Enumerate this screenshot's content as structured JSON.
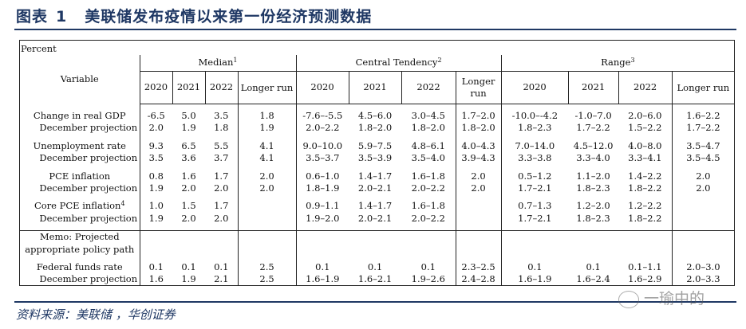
{
  "figure": {
    "label": "图表",
    "number": "1",
    "title": "美联储发布疫情以来第一份经济预测数据"
  },
  "table": {
    "unit": "Percent",
    "variable_header": "Variable",
    "groups": [
      {
        "name": "Median",
        "note": "1"
      },
      {
        "name": "Central Tendency",
        "note": "2"
      },
      {
        "name": "Range",
        "note": "3"
      }
    ],
    "year_headers": [
      "2020",
      "2021",
      "2022",
      "Longer run"
    ],
    "rows": [
      {
        "label": "Change in real GDP",
        "sub_label": "December projection",
        "median": [
          [
            "-6.5",
            "2.0"
          ],
          [
            "5.0",
            "1.9"
          ],
          [
            "3.5",
            "1.8"
          ],
          [
            "1.8",
            "1.9"
          ]
        ],
        "central": [
          [
            "-7.6–-5.5",
            "2.0–2.2"
          ],
          [
            "4.5–6.0",
            "1.8–2.0"
          ],
          [
            "3.0–4.5",
            "1.8–2.0"
          ],
          [
            "1.7–2.0",
            "1.8–2.0"
          ]
        ],
        "range": [
          [
            "-10.0–-4.2",
            "1.8–2.3"
          ],
          [
            "-1.0–7.0",
            "1.7–2.2"
          ],
          [
            "2.0–6.0",
            "1.5–2.2"
          ],
          [
            "1.6–2.2",
            "1.7–2.2"
          ]
        ]
      },
      {
        "label": "Unemployment rate",
        "sub_label": "December projection",
        "median": [
          [
            "9.3",
            "3.5"
          ],
          [
            "6.5",
            "3.6"
          ],
          [
            "5.5",
            "3.7"
          ],
          [
            "4.1",
            "4.1"
          ]
        ],
        "central": [
          [
            "9.0–10.0",
            "3.5–3.7"
          ],
          [
            "5.9–7.5",
            "3.5–3.9"
          ],
          [
            "4.8–6.1",
            "3.5–4.0"
          ],
          [
            "4.0–4.3",
            "3.9–4.3"
          ]
        ],
        "range": [
          [
            "7.0–14.0",
            "3.3–3.8"
          ],
          [
            "4.5–12.0",
            "3.3–4.0"
          ],
          [
            "4.0–8.0",
            "3.3–4.1"
          ],
          [
            "3.5–4.7",
            "3.5–4.5"
          ]
        ]
      },
      {
        "label": "PCE inflation",
        "sub_label": "December projection",
        "median": [
          [
            "0.8",
            "1.9"
          ],
          [
            "1.6",
            "2.0"
          ],
          [
            "1.7",
            "2.0"
          ],
          [
            "2.0",
            "2.0"
          ]
        ],
        "central": [
          [
            "0.6–1.0",
            "1.8–1.9"
          ],
          [
            "1.4–1.7",
            "2.0–2.1"
          ],
          [
            "1.6–1.8",
            "2.0–2.2"
          ],
          [
            "2.0",
            "2.0"
          ]
        ],
        "range": [
          [
            "0.5–1.2",
            "1.7–2.1"
          ],
          [
            "1.1–2.0",
            "1.8–2.3"
          ],
          [
            "1.4–2.2",
            "1.8–2.2"
          ],
          [
            "2.0",
            "2.0"
          ]
        ]
      },
      {
        "label": "Core PCE inflation",
        "note": "4",
        "sub_label": "December projection",
        "median": [
          [
            "1.0",
            "1.9"
          ],
          [
            "1.5",
            "2.0"
          ],
          [
            "1.7",
            "2.0"
          ],
          [
            "",
            ""
          ]
        ],
        "central": [
          [
            "0.9–1.1",
            "1.9–2.0"
          ],
          [
            "1.4–1.7",
            "2.0–2.1"
          ],
          [
            "1.6–1.8",
            "2.0–2.2"
          ],
          [
            "",
            ""
          ]
        ],
        "range": [
          [
            "0.7–1.3",
            "1.7–2.1"
          ],
          [
            "1.2–2.0",
            "1.8–2.3"
          ],
          [
            "1.2–2.2",
            "1.8–2.2"
          ],
          [
            "",
            ""
          ]
        ]
      }
    ],
    "memo": {
      "line1": "Memo: Projected",
      "line2": "appropriate policy path"
    },
    "funds_row": {
      "label": "Federal funds rate",
      "sub_label": "December projection",
      "median": [
        [
          "0.1",
          "1.6"
        ],
        [
          "0.1",
          "1.9"
        ],
        [
          "0.1",
          "2.1"
        ],
        [
          "2.5",
          "2.5"
        ]
      ],
      "central": [
        [
          "0.1",
          "1.6–1.9"
        ],
        [
          "0.1",
          "1.6–2.1"
        ],
        [
          "0.1",
          "1.9–2.6"
        ],
        [
          "2.3–2.5",
          "2.4–2.8"
        ]
      ],
      "range": [
        [
          "0.1",
          "1.6–1.9"
        ],
        [
          "0.1",
          "1.6–2.4"
        ],
        [
          "0.1–1.1",
          "1.6–2.9"
        ],
        [
          "2.0–3.0",
          "2.0–3.3"
        ]
      ]
    }
  },
  "source": "资料来源：美联储 ，华创证券",
  "watermark": "一瑜中的"
}
